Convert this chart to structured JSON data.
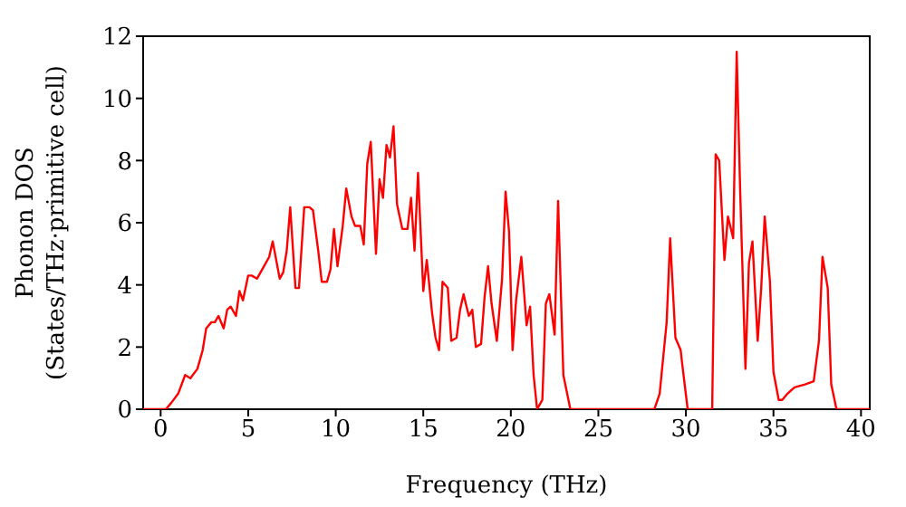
{
  "chart_data": {
    "type": "line",
    "xlabel": "Frequency (THz)",
    "ylabel": "Phonon DOS\n(States/THz·primitive cell)",
    "xlim": [
      -1,
      40.5
    ],
    "xticks": [
      0,
      5,
      10,
      15,
      20,
      25,
      30,
      35,
      40
    ],
    "ylim": [
      0,
      12
    ],
    "yticks": [
      0,
      2,
      4,
      6,
      8,
      10,
      12
    ],
    "grid": false,
    "marker": "none",
    "line_style": "solid",
    "x": [
      -1,
      0.3,
      0.6,
      1.0,
      1.4,
      1.7,
      2.1,
      2.4,
      2.6,
      2.9,
      3.1,
      3.3,
      3.6,
      3.8,
      4.0,
      4.3,
      4.5,
      4.7,
      5.0,
      5.2,
      5.5,
      5.9,
      6.2,
      6.4,
      6.8,
      7.0,
      7.2,
      7.4,
      7.7,
      7.9,
      8.2,
      8.5,
      8.7,
      9.0,
      9.2,
      9.5,
      9.7,
      9.9,
      10.1,
      10.4,
      10.6,
      10.9,
      11.1,
      11.4,
      11.6,
      11.8,
      12.0,
      12.3,
      12.5,
      12.7,
      12.9,
      13.1,
      13.3,
      13.5,
      13.8,
      14.1,
      14.3,
      14.5,
      14.7,
      15.0,
      15.2,
      15.5,
      15.7,
      15.9,
      16.1,
      16.4,
      16.6,
      16.9,
      17.1,
      17.3,
      17.6,
      17.8,
      18.0,
      18.3,
      18.5,
      18.7,
      18.9,
      19.2,
      19.5,
      19.7,
      19.9,
      20.1,
      20.3,
      20.6,
      20.9,
      21.1,
      21.3,
      21.5,
      21.8,
      22.0,
      22.2,
      22.5,
      22.7,
      23.0,
      23.4,
      28.2,
      28.5,
      28.9,
      29.1,
      29.4,
      29.7,
      29.8,
      30.1,
      31.5,
      31.7,
      31.9,
      32.2,
      32.4,
      32.7,
      32.9,
      33.1,
      33.4,
      33.6,
      33.8,
      34.1,
      34.3,
      34.5,
      34.8,
      35.0,
      35.3,
      35.5,
      35.8,
      36.2,
      36.8,
      37.3,
      37.6,
      37.8,
      38.1,
      38.3,
      38.6,
      40.5
    ],
    "series": [
      {
        "color": "#ff0000",
        "values": [
          0,
          0,
          0.2,
          0.5,
          1.1,
          1.0,
          1.3,
          1.9,
          2.6,
          2.8,
          2.8,
          3.0,
          2.6,
          3.2,
          3.3,
          3.0,
          3.8,
          3.5,
          4.3,
          4.3,
          4.2,
          4.6,
          4.9,
          5.4,
          4.2,
          4.4,
          5.1,
          6.5,
          3.9,
          3.9,
          6.5,
          6.5,
          6.4,
          5.1,
          4.1,
          4.1,
          4.5,
          5.8,
          4.6,
          5.9,
          7.1,
          6.2,
          5.9,
          5.9,
          5.3,
          7.9,
          8.6,
          5.0,
          7.4,
          6.8,
          8.5,
          8.1,
          9.1,
          6.6,
          5.8,
          5.8,
          6.8,
          5.1,
          7.6,
          3.8,
          4.8,
          3.1,
          2.3,
          1.9,
          4.1,
          3.9,
          2.2,
          2.3,
          3.2,
          3.7,
          3.0,
          3.2,
          2.0,
          2.1,
          3.6,
          4.6,
          3.4,
          2.2,
          4.2,
          7.0,
          5.7,
          1.9,
          3.5,
          4.9,
          2.7,
          3.3,
          1.1,
          0,
          0.3,
          3.4,
          3.7,
          2.4,
          6.7,
          1.1,
          0,
          0,
          0.5,
          2.8,
          5.5,
          2.3,
          1.9,
          1.4,
          0,
          0,
          8.2,
          8.0,
          4.8,
          6.2,
          5.5,
          11.5,
          7.0,
          1.3,
          4.7,
          5.4,
          2.2,
          3.9,
          6.2,
          4.1,
          1.2,
          0.3,
          0.3,
          0.5,
          0.7,
          0.8,
          0.9,
          2.2,
          4.9,
          3.9,
          0.8,
          0,
          0
        ]
      }
    ]
  }
}
